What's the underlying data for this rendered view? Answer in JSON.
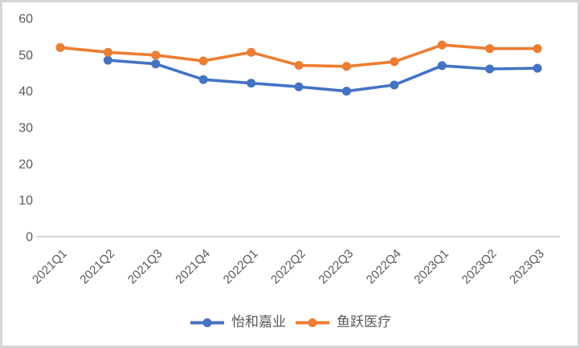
{
  "chart_data": {
    "type": "line",
    "title": "",
    "xlabel": "",
    "ylabel": "",
    "categories": [
      "2021Q1",
      "2021Q2",
      "2021Q3",
      "2021Q4",
      "2022Q1",
      "2022Q2",
      "2022Q3",
      "2022Q4",
      "2023Q1",
      "2023Q2",
      "2023Q3"
    ],
    "series": [
      {
        "name": "怡和嘉业",
        "color": "#4472C4",
        "values": [
          null,
          48.5,
          47.5,
          43.2,
          42.2,
          41.2,
          40.0,
          41.7,
          47.0,
          46.1,
          46.3
        ]
      },
      {
        "name": "鱼跃医疗",
        "color": "#ED7D31",
        "values": [
          52.0,
          50.7,
          49.9,
          48.3,
          50.7,
          47.1,
          46.8,
          48.1,
          52.7,
          51.7,
          51.7
        ]
      }
    ],
    "ylim": [
      0,
      60
    ],
    "yticks": [
      0,
      10,
      20,
      30,
      40,
      50,
      60
    ],
    "grid": false,
    "legend_position": "bottom",
    "style": {
      "text_color": "#595959",
      "axis_line_color": "#D9D9D9",
      "frame_border_color": "#D5D5D5"
    }
  }
}
